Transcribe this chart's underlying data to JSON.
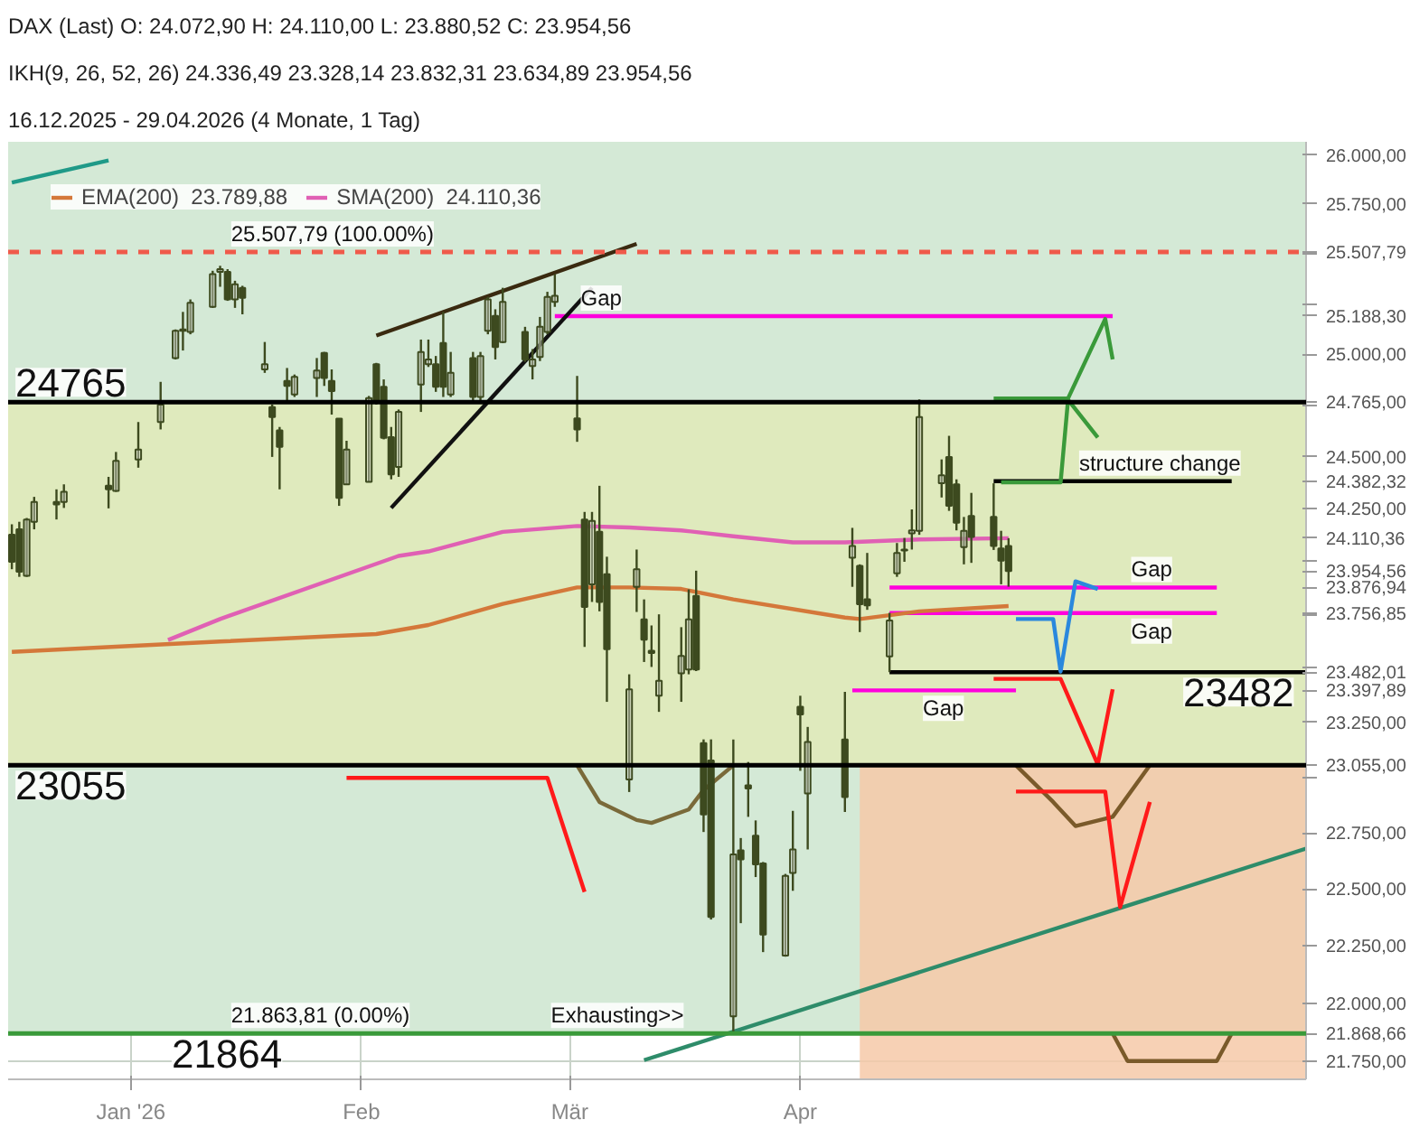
{
  "chart_data": {
    "type": "candlestick",
    "title": "DAX (Last)  O: 24.072,90  H: 24.110,00  L: 23.880,52  C: 23.954,56",
    "color": "#3d4a1f",
    "x": [
      "2025-12-16",
      "2025-12-17",
      "2025-12-18",
      "2025-12-19",
      "2025-12-22",
      "2025-12-23",
      "2025-12-29",
      "2025-12-30",
      "2026-01-02",
      "2026-01-05",
      "2026-01-07",
      "2026-01-08",
      "2026-01-09",
      "2026-01-12",
      "2026-01-13",
      "2026-01-14",
      "2026-01-15",
      "2026-01-16",
      "2026-01-19",
      "2026-01-20",
      "2026-01-21",
      "2026-01-22",
      "2026-01-23",
      "2026-01-26",
      "2026-01-27",
      "2026-01-28",
      "2026-01-29",
      "2026-01-30",
      "2026-02-02",
      "2026-02-03",
      "2026-02-04",
      "2026-02-05",
      "2026-02-06",
      "2026-02-09",
      "2026-02-10",
      "2026-02-11",
      "2026-02-12",
      "2026-02-13",
      "2026-02-16",
      "2026-02-17",
      "2026-02-18",
      "2026-02-19",
      "2026-02-20",
      "2026-02-23",
      "2026-02-24",
      "2026-02-25",
      "2026-02-26",
      "2026-02-27",
      "2026-03-02",
      "2026-03-03",
      "2026-03-04",
      "2026-03-05",
      "2026-03-06",
      "2026-03-09",
      "2026-03-10",
      "2026-03-11",
      "2026-03-12",
      "2026-03-13",
      "2026-03-16",
      "2026-03-17",
      "2026-03-18",
      "2026-03-19",
      "2026-03-20",
      "2026-03-23",
      "2026-03-24",
      "2026-03-25",
      "2026-03-26",
      "2026-03-27",
      "2026-03-30",
      "2026-03-31",
      "2026-04-01",
      "2026-04-02",
      "2026-04-07",
      "2026-04-08",
      "2026-04-09",
      "2026-04-10",
      "2026-04-13",
      "2026-04-14",
      "2026-04-15",
      "2026-04-16",
      "2026-04-17",
      "2026-04-20",
      "2026-04-21",
      "2026-04-22",
      "2026-04-23",
      "2026-04-24",
      "2026-04-27",
      "2026-04-28",
      "2026-04-29"
    ],
    "ohlc": [
      [
        24126,
        24176,
        23963,
        23998
      ],
      [
        24152,
        24188,
        23927,
        23951
      ],
      [
        23932,
        24206,
        23927,
        24199
      ],
      [
        24188,
        24307,
        24152,
        24283
      ],
      [
        24283,
        24343,
        24199,
        24271
      ],
      [
        24283,
        24367,
        24254,
        24331
      ],
      [
        24360,
        24403,
        24252,
        24343
      ],
      [
        24336,
        24523,
        24331,
        24480
      ],
      [
        24487,
        24668,
        24447,
        24535
      ],
      [
        24668,
        24864,
        24632,
        24753
      ],
      [
        24981,
        25122,
        24974,
        25115
      ],
      [
        25115,
        25209,
        25018,
        25122
      ],
      [
        25110,
        25271,
        25098,
        25254
      ],
      [
        25234,
        25414,
        25229,
        25397
      ],
      [
        25409,
        25439,
        25334,
        25422
      ],
      [
        25409,
        25422,
        25264,
        25271
      ],
      [
        25271,
        25364,
        25229,
        25346
      ],
      [
        25329,
        25339,
        25197,
        25279
      ],
      [
        24925,
        25060,
        24908,
        24950
      ],
      [
        24741,
        24753,
        24499,
        24692
      ],
      [
        24627,
        24644,
        24343,
        24548
      ],
      [
        24869,
        24932,
        24766,
        24844
      ],
      [
        24802,
        24900,
        24790,
        24888
      ],
      [
        24883,
        24981,
        24790,
        24920
      ],
      [
        25006,
        25011,
        24844,
        24883
      ],
      [
        24869,
        24925,
        24704,
        24819
      ],
      [
        24684,
        24684,
        24264,
        24302
      ],
      [
        24367,
        24577,
        24367,
        24535
      ],
      [
        24379,
        24795,
        24379,
        24785
      ],
      [
        24950,
        24957,
        24753,
        24766
      ],
      [
        24840,
        24876,
        24584,
        24591
      ],
      [
        24595,
        24644,
        24391,
        24415
      ],
      [
        24451,
        24729,
        24403,
        24717
      ],
      [
        24851,
        25072,
        24717,
        25011
      ],
      [
        24950,
        25072,
        24937,
        24974
      ],
      [
        24950,
        24991,
        24815,
        24840
      ],
      [
        25055,
        25209,
        24790,
        24840
      ],
      [
        24802,
        25011,
        24790,
        24908
      ],
      [
        24981,
        25011,
        24766,
        24790
      ],
      [
        24790,
        25011,
        24766,
        24991
      ],
      [
        25115,
        25284,
        25098,
        25271
      ],
      [
        25189,
        25222,
        24974,
        25035
      ],
      [
        25060,
        25329,
        25055,
        25259
      ],
      [
        25110,
        25135,
        24962,
        24974
      ],
      [
        24942,
        25025,
        24876,
        24974
      ],
      [
        24986,
        25184,
        24966,
        25135
      ],
      [
        25110,
        25309,
        25098,
        25284
      ],
      [
        25259,
        25397,
        25234,
        25289
      ],
      [
        24686,
        24893,
        24572,
        24632
      ],
      [
        24199,
        24235,
        23599,
        23786
      ],
      [
        23892,
        24235,
        23809,
        24192
      ],
      [
        24140,
        24360,
        23765,
        23809
      ],
      [
        23939,
        24022,
        23345,
        23588
      ],
      [
        22991,
        23472,
        22934,
        23402
      ],
      [
        23880,
        24056,
        23762,
        23963
      ],
      [
        23727,
        23821,
        23529,
        23633
      ],
      [
        23581,
        23699,
        23506,
        23571
      ],
      [
        23373,
        23751,
        23299,
        23442
      ],
      [
        23476,
        23691,
        23345,
        23557
      ],
      [
        23494,
        23868,
        23472,
        23727
      ],
      [
        23837,
        23956,
        23487,
        23494
      ],
      [
        23156,
        23173,
        22754,
        22833
      ],
      [
        23077,
        23173,
        22365,
        22376
      ],
      [
        21943,
        23173,
        21864,
        22654
      ],
      [
        22672,
        22727,
        22349,
        22632
      ],
      [
        22964,
        23070,
        22822,
        22950
      ],
      [
        22738,
        22806,
        22553,
        22609
      ],
      [
        22613,
        22620,
        22222,
        22299
      ],
      [
        22207,
        22567,
        22202,
        22558
      ],
      [
        22571,
        22849,
        22492,
        22676
      ],
      [
        23322,
        23373,
        23030,
        23287
      ],
      [
        22927,
        23230,
        22676,
        23161
      ],
      [
        23173,
        23391,
        22844,
        22911
      ],
      [
        24017,
        24159,
        23880,
        24073
      ],
      [
        23979,
        23986,
        23668,
        23798
      ],
      [
        23821,
        24040,
        23772,
        23793
      ],
      [
        23555,
        23758,
        23482,
        23722
      ],
      [
        23944,
        24087,
        23927,
        24040
      ],
      [
        24052,
        24111,
        23998,
        24056
      ],
      [
        24133,
        24247,
        24056,
        24147
      ],
      [
        24145,
        24778,
        24126,
        24692
      ],
      [
        24372,
        24487,
        24304,
        24410
      ],
      [
        24499,
        24601,
        24240,
        24264
      ],
      [
        24367,
        24391,
        24147,
        24183
      ],
      [
        24068,
        24211,
        23986,
        24145
      ],
      [
        24216,
        24326,
        23993,
        24116
      ],
      [
        24211,
        24372,
        24054,
        24073
      ],
      [
        24061,
        24145,
        23892,
        24003
      ],
      [
        24072.9,
        24110,
        23880.52,
        23954.56
      ]
    ],
    "series": [
      {
        "type": "area",
        "x": [
          "2026-04-09",
          "2026-06-08"
        ],
        "values": [
          23055,
          23055
        ],
        "color": "#f6c9a8"
      },
      {
        "type": "line",
        "x": [
          "2026-03-02",
          "2026-03-05",
          "2026-03-10",
          "2026-03-12",
          "2026-03-17",
          "2026-03-19",
          "2026-03-23"
        ],
        "values": [
          23055,
          22889,
          22808,
          22795,
          22855,
          22943,
          23055
        ],
        "color": "#7a6a3a"
      },
      {
        "type": "line",
        "x": [
          "2026-04-30",
          "2026-05-05",
          "2026-05-08",
          "2026-05-13",
          "2026-05-18"
        ],
        "values": [
          23055,
          22889,
          22781,
          22822,
          23055
        ],
        "color": "#7a5a2a"
      },
      {
        "type": "line",
        "x": [
          "2026-05-13",
          "2026-05-15",
          "2026-05-27",
          "2026-05-29"
        ],
        "values": [
          21868.66,
          21750,
          21750,
          21868.66
        ],
        "color": "#7a5a2a"
      },
      {
        "type": "line",
        "x": [
          "2026-02-27",
          "2026-05-13"
        ],
        "values": [
          25188.3,
          25188.3
        ],
        "color": "#ff00dd"
      },
      {
        "type": "line",
        "x": [
          "2026-04-13",
          "2026-05-27"
        ],
        "values": [
          23876.94,
          23876.94
        ],
        "color": "#ff00dd"
      },
      {
        "type": "line",
        "x": [
          "2026-04-13",
          "2026-05-27"
        ],
        "values": [
          23756.85,
          23756.85
        ],
        "color": "#ff00dd"
      },
      {
        "type": "line",
        "x": [
          "2026-04-08",
          "2026-04-30"
        ],
        "values": [
          23397.89,
          23397.89
        ],
        "color": "#ff00dd"
      },
      {
        "type": "line",
        "x": [
          "2026-02-03",
          "2026-03-10"
        ],
        "values": [
          25092,
          25549
        ],
        "color": "#3a2a10"
      },
      {
        "type": "line",
        "x": [
          "2026-02-05",
          "2026-03-04"
        ],
        "values": [
          24254,
          25329
        ],
        "color": "#111111"
      },
      {
        "type": "line",
        "name": "EMA(200)  23.789,88",
        "x": [
          "2025-12-16",
          "2026-01-13",
          "2026-02-03",
          "2026-02-10",
          "2026-02-20",
          "2026-03-02",
          "2026-03-09",
          "2026-03-16",
          "2026-03-23",
          "2026-04-07",
          "2026-04-09",
          "2026-04-17",
          "2026-04-29"
        ],
        "values": [
          23576,
          23624,
          23659,
          23701,
          23800,
          23877,
          23877,
          23870,
          23821,
          23736,
          23729,
          23765,
          23790
        ],
        "color": "#d4783a"
      },
      {
        "type": "line",
        "name": "SMA(200)  24.110,36",
        "x": [
          "2026-01-06",
          "2026-01-13",
          "2026-02-06",
          "2026-02-10",
          "2026-02-20",
          "2026-03-02",
          "2026-03-09",
          "2026-03-16",
          "2026-03-23",
          "2026-03-31",
          "2026-04-07",
          "2026-04-17",
          "2026-04-29"
        ],
        "values": [
          23631,
          23729,
          24026,
          24047,
          24140,
          24168,
          24161,
          24147,
          24119,
          24090,
          24090,
          24104,
          24110
        ],
        "color": "#e060b4"
      },
      {
        "type": "line",
        "x": [
          "2025-12-16",
          "2025-12-29"
        ],
        "values": [
          25860,
          25973
        ],
        "color": "#1f9a88"
      },
      {
        "type": "line",
        "x": [
          "2026-03-11",
          "2026-06-08"
        ],
        "values": [
          21754,
          22680
        ],
        "color": "#2e8c6a"
      },
      {
        "type": "line",
        "x": [
          "2026-04-13",
          "2026-06-08"
        ],
        "values": [
          23482.01,
          23482.01
        ],
        "color": "#000000"
      },
      {
        "type": "line",
        "x": [
          "2026-04-27",
          "2026-05-29"
        ],
        "values": [
          24382.32,
          24382.32
        ],
        "color": "#000000"
      },
      {
        "type": "line",
        "x": [
          "2026-04-27",
          "2026-05-07",
          "2026-05-12",
          "2026-05-13"
        ],
        "values": [
          24783,
          24783,
          25174,
          24974
        ],
        "color": "#3a9a3a"
      },
      {
        "type": "line",
        "x": [
          "2026-04-28",
          "2026-05-06",
          "2026-05-07",
          "2026-05-11"
        ],
        "values": [
          24377,
          24377,
          24776,
          24593
        ],
        "color": "#3a9a3a"
      },
      {
        "type": "line",
        "x": [
          "2026-04-30",
          "2026-05-05",
          "2026-05-06",
          "2026-05-08",
          "2026-05-11"
        ],
        "values": [
          23729,
          23729,
          23485,
          23906,
          23870
        ],
        "color": "#2a88dd"
      },
      {
        "type": "line",
        "x": [
          "2026-01-30",
          "2026-02-26",
          "2026-03-03"
        ],
        "values": [
          22998,
          22998,
          22487
        ],
        "color": "#ff1a1a"
      },
      {
        "type": "line",
        "x": [
          "2026-04-27",
          "2026-05-06",
          "2026-05-11",
          "2026-05-13"
        ],
        "values": [
          23451,
          23451,
          23059,
          23403
        ],
        "color": "#ff1a1a"
      },
      {
        "type": "line",
        "x": [
          "2026-04-30",
          "2026-05-12",
          "2026-05-14",
          "2026-05-18"
        ],
        "values": [
          22936,
          22936,
          22420,
          22889
        ],
        "color": "#ff1a1a"
      }
    ],
    "xlim": [
      "2025-12-15T12:00",
      "2026-06-08"
    ],
    "xticks": [
      {
        "value": "2026-01-01",
        "label": "Jan '26"
      },
      {
        "value": "2026-02-01",
        "label": "Feb"
      },
      {
        "value": "2026-03-01",
        "label": "Mär"
      },
      {
        "value": "2026-04-01",
        "label": "Apr"
      }
    ],
    "log": true,
    "ylim": [
      21672,
      26068
    ],
    "yticks": [
      {
        "value": 21750,
        "label": "21.750,00"
      },
      {
        "value": 22000,
        "label": "22.000,00"
      },
      {
        "value": 22250,
        "label": "22.250,00"
      },
      {
        "value": 22500,
        "label": "22.500,00"
      },
      {
        "value": 22750,
        "label": "22.750,00"
      },
      {
        "value": 23000,
        "label": null
      },
      {
        "value": 23250,
        "label": "23.250,00"
      },
      {
        "value": 23500,
        "label": null
      },
      {
        "value": 23750,
        "label": null
      },
      {
        "value": 24000,
        "label": null
      },
      {
        "value": 24250,
        "label": "24.250,00"
      },
      {
        "value": 24500,
        "label": "24.500,00"
      },
      {
        "value": 24750,
        "label": null
      },
      {
        "value": 25000,
        "label": "25.000,00"
      },
      {
        "value": 25250,
        "label": null
      },
      {
        "value": 25500,
        "label": null
      },
      {
        "value": 25750,
        "label": "25.750,00"
      },
      {
        "value": 26000,
        "label": "26.000,00"
      },
      {
        "value": 25507.79,
        "label": "25.507,79"
      },
      {
        "value": 25188.3,
        "label": "25.188,30"
      },
      {
        "value": 24765,
        "label": "24.765,00"
      },
      {
        "value": 24382.32,
        "label": "24.382,32"
      },
      {
        "value": 24110.36,
        "label": "24.110,36"
      },
      {
        "value": 23954.56,
        "label": "23.954,56"
      },
      {
        "value": 23876.94,
        "label": "23.876,94"
      },
      {
        "value": 23756.85,
        "label": "23.756,85"
      },
      {
        "value": 23482.01,
        "label": "23.482,01"
      },
      {
        "value": 23397.89,
        "label": "23.397,89"
      },
      {
        "value": 23055,
        "label": "23.055,00"
      },
      {
        "value": 21868.66,
        "label": "21.868,66"
      }
    ],
    "grid": true,
    "legend": "top left",
    "bands": [
      {
        "axis": "y",
        "from": 24765,
        "to": 26068,
        "color": "#d4e9d6"
      },
      {
        "axis": "y",
        "from": 23055,
        "to": 24765,
        "color": "#dfeabd"
      },
      {
        "axis": "y",
        "from": 21868.66,
        "to": 23055,
        "color": "#d4e9d6"
      }
    ],
    "ref_lines": [
      {
        "axis": "y",
        "value": 25507.79,
        "color": "#f05a4a",
        "line_style": "dashed"
      },
      {
        "axis": "y",
        "value": 24765,
        "color": "#000000",
        "line_style": "solid"
      },
      {
        "axis": "y",
        "value": 23055,
        "color": "#000000",
        "line_style": "solid"
      },
      {
        "axis": "y",
        "value": 21868.66,
        "color": "#3a9a3a",
        "line_style": "solid"
      }
    ],
    "annotations": [
      {
        "text": "24765",
        "x": "2025-12-16",
        "y": 24765
      },
      {
        "text": "23055",
        "x": "2025-12-16",
        "y": 23055
      },
      {
        "text": "23482",
        "x": "2026-05-22",
        "y": 23482.01
      },
      {
        "text": "21864",
        "x": "2026-01-06",
        "y": 21868.66
      },
      {
        "text": "Gap",
        "x": "2026-03-02",
        "y": 25188.3
      },
      {
        "text": "Gap",
        "x": "2026-05-15",
        "y": 23876.94
      },
      {
        "text": "Gap",
        "x": "2026-05-15",
        "y": 23756.85
      },
      {
        "text": "Gap",
        "x": "2026-04-17",
        "y": 23397.89
      },
      {
        "text": "structure change",
        "x": "2026-05-08",
        "y": 24382.32
      },
      {
        "text": "Exhausting>>",
        "x": "2026-02-26",
        "y": 21868.66
      },
      {
        "text": "21.863,81 (0.00%)",
        "x": "2026-01-14",
        "y": 21868.66
      },
      {
        "text": "25.507,79 (100.00%)",
        "x": "2026-01-14",
        "y": 25507.79
      },
      "IKH(9, 26, 52, 26)  24.336,49  23.328,14  23.832,31  23.634,89  23.954,56",
      "16.12.2025 - 29.04.2026  (4 Monate, 1 Tag)"
    ]
  }
}
